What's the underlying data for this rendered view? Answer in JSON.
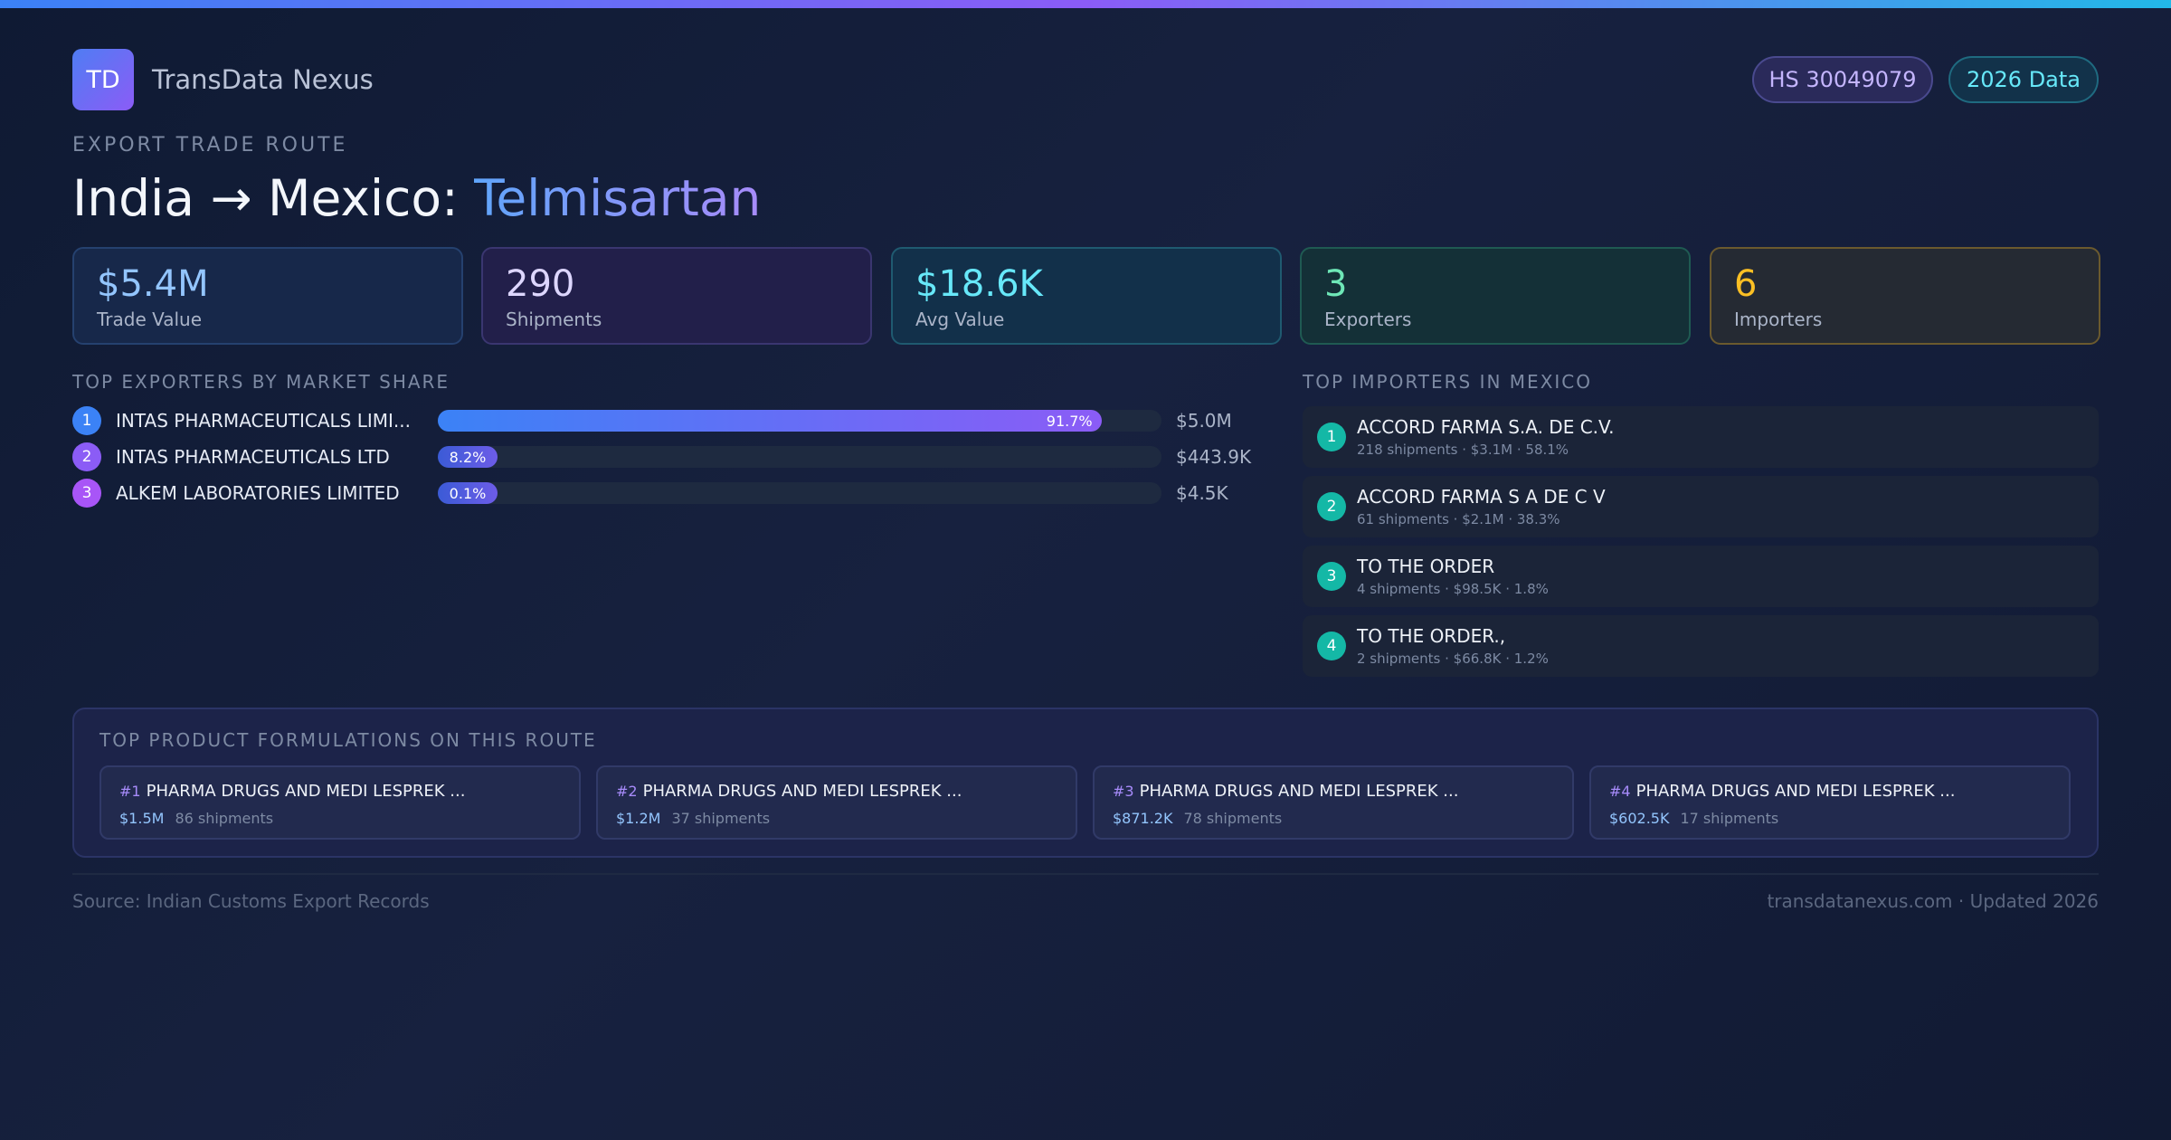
{
  "brand": {
    "logo": "TD",
    "name": "TransData Nexus"
  },
  "header": {
    "hs_code": "HS 30049079",
    "data_year": "2026 Data"
  },
  "route": {
    "eyebrow": "EXPORT TRADE ROUTE",
    "title_prefix": "India → Mexico:",
    "product": "Telmisartan"
  },
  "stats": [
    {
      "value": "$5.4M",
      "label": "Trade Value"
    },
    {
      "value": "290",
      "label": "Shipments"
    },
    {
      "value": "$18.6K",
      "label": "Avg Value"
    },
    {
      "value": "3",
      "label": "Exporters"
    },
    {
      "value": "6",
      "label": "Importers"
    }
  ],
  "exporters": {
    "heading": "TOP EXPORTERS BY MARKET SHARE",
    "items": [
      {
        "rank": "1",
        "name": "INTAS PHARMACEUTICALS LIMI...",
        "share_pct": 91.7,
        "share_label": "91.7%",
        "value": "$5.0M"
      },
      {
        "rank": "2",
        "name": "INTAS PHARMACEUTICALS LTD",
        "share_pct": 8.2,
        "share_label": "8.2%",
        "value": "$443.9K"
      },
      {
        "rank": "3",
        "name": "ALKEM LABORATORIES LIMITED",
        "share_pct": 0.1,
        "share_label": "0.1%",
        "value": "$4.5K"
      }
    ]
  },
  "importers": {
    "heading": "TOP IMPORTERS IN MEXICO",
    "items": [
      {
        "rank": "1",
        "name": "ACCORD FARMA S.A. DE C.V.",
        "detail": "218 shipments · $3.1M · 58.1%"
      },
      {
        "rank": "2",
        "name": "ACCORD FARMA S A DE C V",
        "detail": "61 shipments · $2.1M · 38.3%"
      },
      {
        "rank": "3",
        "name": "TO THE ORDER",
        "detail": "4 shipments · $98.5K · 1.8%"
      },
      {
        "rank": "4",
        "name": "TO THE ORDER.,",
        "detail": "2 shipments · $66.8K · 1.2%"
      }
    ]
  },
  "formulations": {
    "heading": "TOP PRODUCT FORMULATIONS ON THIS ROUTE",
    "items": [
      {
        "rank": "#1",
        "name": "PHARMA DRUGS AND MEDI LESPREK ...",
        "value": "$1.5M",
        "shipments": "86 shipments"
      },
      {
        "rank": "#2",
        "name": "PHARMA DRUGS AND MEDI LESPREK ...",
        "value": "$1.2M",
        "shipments": "37 shipments"
      },
      {
        "rank": "#3",
        "name": "PHARMA DRUGS AND MEDI LESPREK ...",
        "value": "$871.2K",
        "shipments": "78 shipments"
      },
      {
        "rank": "#4",
        "name": "PHARMA DRUGS AND MEDI LESPREK ...",
        "value": "$602.5K",
        "shipments": "17 shipments"
      }
    ]
  },
  "footer": {
    "source": "Source: Indian Customs Export Records",
    "site": "transdatanexus.com · Updated 2026"
  },
  "colors": {
    "rank_circles": [
      "#3b82f6",
      "#8b5cf6",
      "#a855f7"
    ]
  }
}
